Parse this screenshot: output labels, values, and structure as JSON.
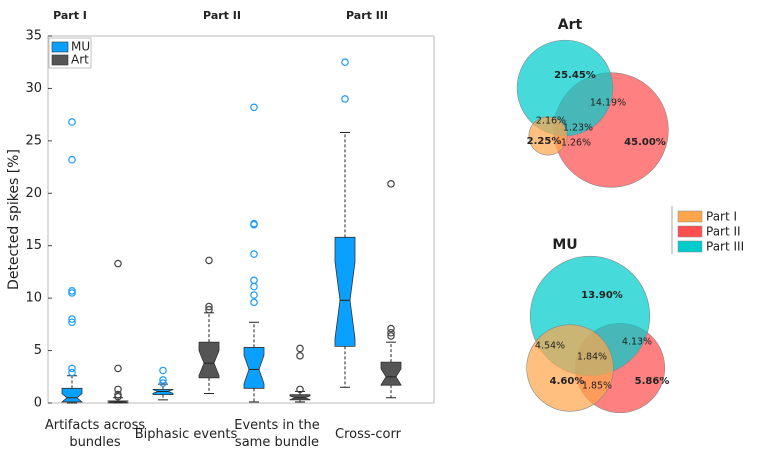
{
  "chart_data": [
    {
      "type": "box",
      "annotations": [
        "Part I",
        "Part II",
        "Part III"
      ],
      "ylabel": "Detected spikes [%]",
      "categories": [
        "Artifacts across bundles",
        "Biphasic events",
        "Events in the same bundle",
        "Cross-corr"
      ],
      "ylim": [
        0,
        35
      ],
      "yticks": [
        0,
        5,
        10,
        15,
        20,
        25,
        30,
        35
      ],
      "legend": "top-left",
      "series": [
        {
          "name": "MU",
          "color": "#0aa0ff",
          "flier_color": "#1a9cff",
          "whislo": [
            0,
            0.3,
            0.1,
            1.5
          ],
          "q1": [
            0.1,
            0.8,
            1.4,
            5.4
          ],
          "med": [
            0.5,
            1.1,
            3.2,
            9.8
          ],
          "q3": [
            1.4,
            1.3,
            5.3,
            15.8
          ],
          "whishi": [
            2.6,
            1.8,
            7.7,
            25.8
          ],
          "fliers": [
            [
              26.8,
              23.2,
              10.7,
              10.5,
              8.0,
              7.7,
              3.3,
              2.9
            ],
            [
              3.1,
              2.2,
              1.9
            ],
            [
              28.2,
              17.1,
              17.0,
              14.2,
              11.7,
              11.1,
              10.3,
              9.6
            ],
            [
              32.5,
              29.0
            ]
          ]
        },
        {
          "name": "Art",
          "color": "#555555",
          "flier_color": "#444444",
          "whislo": [
            0,
            0.9,
            0.1,
            0.5
          ],
          "q1": [
            0,
            2.4,
            0.3,
            1.7
          ],
          "med": [
            0.1,
            3.8,
            0.5,
            2.5
          ],
          "q3": [
            0.2,
            5.8,
            0.8,
            3.9
          ],
          "whishi": [
            0.5,
            8.6,
            1.1,
            5.8
          ],
          "fliers": [
            [
              13.3,
              3.3,
              1.3,
              0.8,
              0.6
            ],
            [
              13.6,
              9.2,
              8.9
            ],
            [
              5.2,
              4.5,
              1.3
            ],
            [
              20.9,
              7.1,
              6.7,
              6.4
            ]
          ]
        }
      ]
    },
    {
      "type": "venn",
      "title": "Art",
      "values": [
        2.25,
        45.0,
        25.45,
        1.26,
        2.16,
        14.19,
        1.23
      ],
      "value_labels": [
        "2.25%",
        "45.00%",
        "25.45%",
        "1.26%",
        "2.16%",
        "14.19%",
        "1.23%"
      ]
    },
    {
      "type": "venn",
      "title": "MU",
      "values": [
        4.6,
        5.86,
        13.9,
        1.85,
        4.54,
        4.13,
        1.84
      ],
      "value_labels": [
        "4.60%",
        "5.86%",
        "13.90%",
        "1.85%",
        "4.54%",
        "4.13%",
        "1.84%"
      ]
    }
  ],
  "venn_sets": [
    {
      "name": "Part I",
      "color": "#ffa64d"
    },
    {
      "name": "Part II",
      "color": "#ff4f4f"
    },
    {
      "name": "Part III",
      "color": "#00cccc"
    }
  ]
}
